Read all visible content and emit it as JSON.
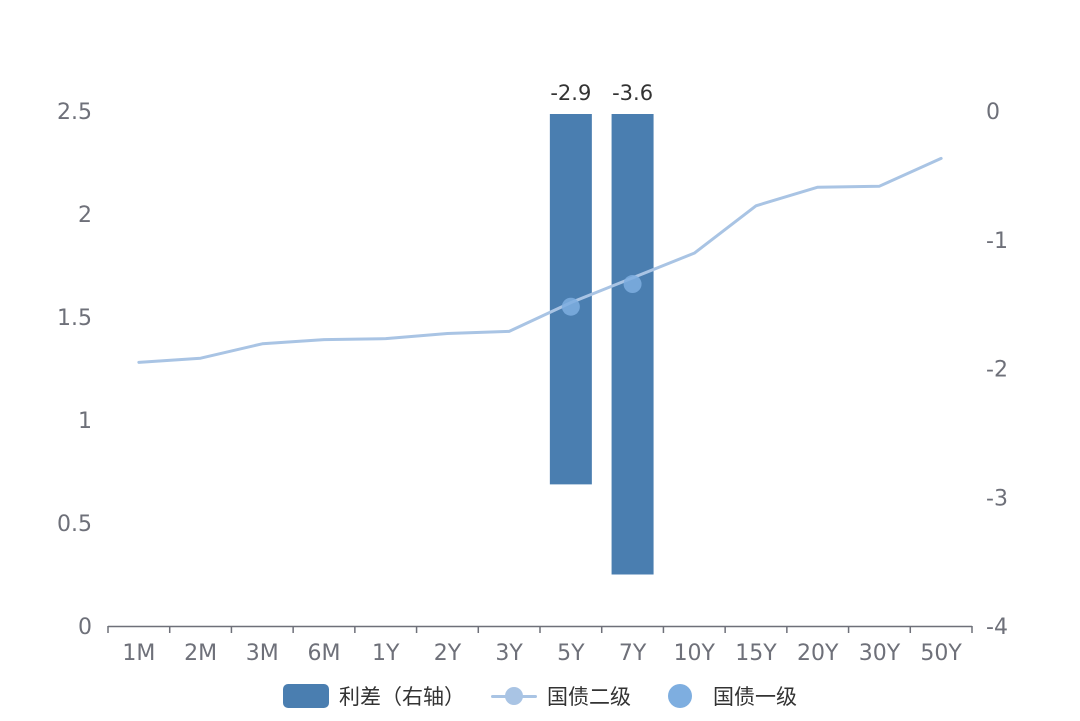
{
  "chart_data": {
    "type": "bar+line",
    "categories": [
      "1M",
      "2M",
      "3M",
      "6M",
      "1Y",
      "2Y",
      "3Y",
      "5Y",
      "7Y",
      "10Y",
      "15Y",
      "20Y",
      "30Y",
      "50Y"
    ],
    "y_left": {
      "min": 0,
      "max": 2.5,
      "ticks": [
        "0",
        "0.5",
        "1",
        "1.5",
        "2",
        "2.5"
      ]
    },
    "y_right": {
      "min": -4,
      "max": 0,
      "ticks": [
        "-4",
        "-3",
        "-2",
        "-1",
        "0"
      ]
    },
    "series": [
      {
        "name": "利差（右轴）",
        "kind": "bar",
        "axis": "right",
        "color": "#4a7eb0",
        "values": [
          null,
          null,
          null,
          null,
          null,
          null,
          null,
          -2.9,
          -3.6,
          null,
          null,
          null,
          null,
          null
        ],
        "labels": [
          null,
          null,
          null,
          null,
          null,
          null,
          null,
          "-2.9",
          "-3.6",
          null,
          null,
          null,
          null,
          null
        ]
      },
      {
        "name": "国债二级",
        "kind": "line",
        "axis": "left",
        "color": "#a9c4e4",
        "values": [
          1.28,
          1.3,
          1.37,
          1.39,
          1.395,
          1.42,
          1.43,
          1.57,
          1.69,
          1.81,
          2.04,
          2.13,
          2.135,
          2.27
        ]
      },
      {
        "name": "国债一级",
        "kind": "scatter",
        "axis": "left",
        "color": "#7eaee0",
        "values": [
          null,
          null,
          null,
          null,
          null,
          null,
          null,
          1.55,
          1.66,
          null,
          null,
          null,
          null,
          null
        ]
      }
    ],
    "grid": false,
    "legend_position": "bottom"
  }
}
